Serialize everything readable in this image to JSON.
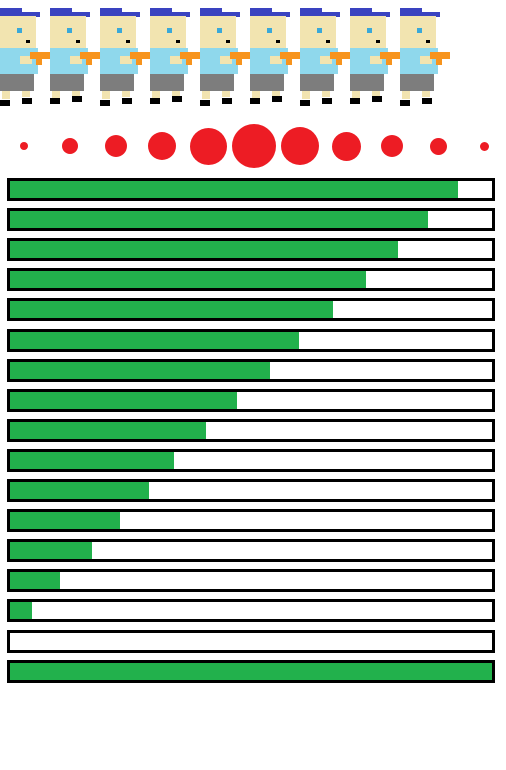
{
  "sprite_row": {
    "count": 9,
    "icon": "pixel-boy-with-blue-cap-and-orange-blaster",
    "colors": {
      "cap": "#3a43c0",
      "skin": "#f2e4b0",
      "shirt": "#8fd8ec",
      "shorts": "#7d7d7d",
      "gun": "#f7941d",
      "eye": "#3aa8d8",
      "outline": "#000000"
    }
  },
  "dots": {
    "color": "#ed1c24",
    "relative_sizes": [
      0.18,
      0.36,
      0.5,
      0.64,
      0.84,
      1.0,
      0.86,
      0.66,
      0.5,
      0.38,
      0.2
    ]
  },
  "bars": {
    "fill_color": "#22b14c",
    "track_color": "#ffffff",
    "border_color": "#000000",
    "fill_fractions": [
      0.929,
      0.868,
      0.806,
      0.739,
      0.671,
      0.599,
      0.539,
      0.471,
      0.407,
      0.341,
      0.288,
      0.228,
      0.171,
      0.103,
      0.045,
      0.0,
      1.0
    ]
  }
}
